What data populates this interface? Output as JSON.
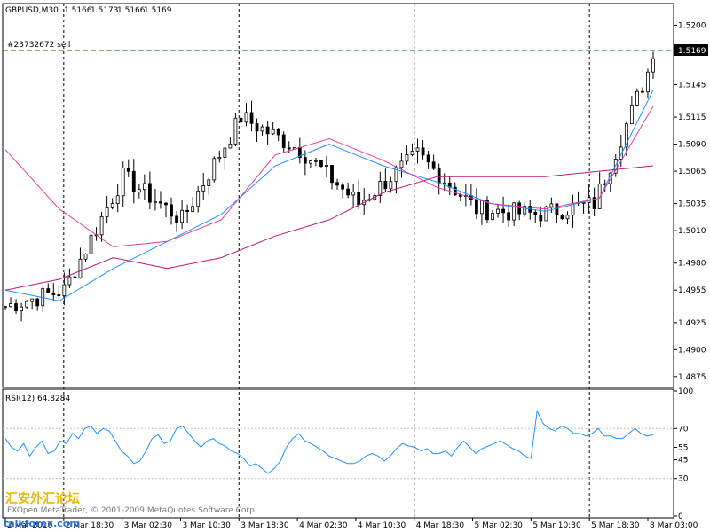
{
  "header": {
    "symbol": "GBPUSD,M30",
    "open": "1.5166",
    "high": "1.5173",
    "low": "1.5166",
    "close": "1.5169"
  },
  "order_label": "#23732672 sell",
  "current_price_label": "1.5169",
  "rsi_label": "RSI(12) 64.8284",
  "watermark": {
    "copyright": "FXOpen MetaTrader, © 2001-2009 MetaQuotes Software Corp.",
    "logo": "汇安外汇论坛",
    "site": "talkforex.com"
  },
  "colors": {
    "background": "#ffffff",
    "candles": "#000000",
    "ma_fast": "#1e90ff",
    "ma_mid": "#e040a0",
    "ma_slow": "#c0167a",
    "rsi_line": "#1e90ff",
    "order_line": "#006400"
  },
  "chart_data": [
    {
      "type": "candlestick",
      "title": "GBPUSD,M30",
      "ylim": [
        1.4865,
        1.522
      ],
      "y_ticks": [
        "1.5200",
        "1.5145",
        "1.5115",
        "1.5090",
        "1.5065",
        "1.5035",
        "1.5010",
        "1.4980",
        "1.4955",
        "1.4925",
        "1.4900",
        "1.4875"
      ],
      "x_ticks": [
        "2 Mar 2010",
        "2 Mar 18:30",
        "3 Mar 02:30",
        "3 Mar 10:30",
        "3 Mar 18:30",
        "4 Mar 02:30",
        "4 Mar 10:30",
        "4 Mar 18:30",
        "5 Mar 02:30",
        "5 Mar 10:30",
        "5 Mar 18:30",
        "8 Mar 03:00"
      ],
      "day_separators": [
        "2 Mar 18:30",
        "3 Mar 18:30",
        "4 Mar 18:30",
        "5 Mar 18:30"
      ],
      "order_line": {
        "label": "#23732672 sell",
        "value": 1.5169
      },
      "current_price": 1.5169,
      "key_closes": [
        {
          "time": "2 Mar 2010",
          "close": 1.494
        },
        {
          "time": "2 Mar 18:30",
          "close": 1.4955
        },
        {
          "time": "3 Mar 02:30",
          "close": 1.506
        },
        {
          "time": "3 Mar 10:30",
          "close": 1.502
        },
        {
          "time": "3 Mar 18:30",
          "close": 1.5115
        },
        {
          "time": "4 Mar 02:30",
          "close": 1.5085
        },
        {
          "time": "4 Mar 10:30",
          "close": 1.5035
        },
        {
          "time": "4 Mar 18:30",
          "close": 1.508
        },
        {
          "time": "5 Mar 02:30",
          "close": 1.503
        },
        {
          "time": "5 Mar 10:30",
          "close": 1.5025
        },
        {
          "time": "5 Mar 18:30",
          "close": 1.5035
        },
        {
          "time": "8 Mar 03:00",
          "close": 1.5169
        }
      ],
      "moving_averages": [
        {
          "values": [
            1.4955,
            1.4945,
            1.4975,
            1.5,
            1.5025,
            1.507,
            1.509,
            1.507,
            1.5055,
            1.5035,
            1.5028,
            1.504,
            1.514
          ]
        },
        {
          "values": [
            1.5085,
            1.503,
            1.4995,
            1.5,
            1.502,
            1.508,
            1.5095,
            1.5075,
            1.505,
            1.5035,
            1.503,
            1.504,
            1.5125
          ]
        },
        {
          "values": [
            1.4955,
            1.4965,
            1.4985,
            1.4975,
            1.4985,
            1.5005,
            1.502,
            1.5045,
            1.506,
            1.506,
            1.506,
            1.5065,
            1.507
          ]
        }
      ]
    },
    {
      "type": "line",
      "title": "RSI(12) 64.8284",
      "ylim": [
        0,
        100
      ],
      "y_ticks": [
        "100",
        "70",
        "55",
        "45",
        "30",
        "0"
      ],
      "levels": [
        70,
        30
      ],
      "series": [
        {
          "values": [
            62,
            55,
            52,
            58,
            48,
            55,
            60,
            50,
            52,
            60,
            58,
            66,
            62,
            70,
            72,
            66,
            70,
            68,
            60,
            52,
            48,
            42,
            44,
            52,
            62,
            65,
            58,
            60,
            70,
            72,
            66,
            60,
            55,
            60,
            62,
            58,
            56,
            52,
            50,
            46,
            40,
            42,
            38,
            34,
            38,
            44,
            55,
            62,
            66,
            60,
            58,
            55,
            52,
            48,
            46,
            44,
            42,
            42,
            44,
            48,
            50,
            48,
            44,
            48,
            54,
            58,
            56,
            55,
            52,
            54,
            50,
            50,
            52,
            48,
            55,
            60,
            55,
            50,
            54,
            56,
            58,
            60,
            57,
            54,
            52,
            48,
            46,
            84,
            74,
            70,
            68,
            72,
            70,
            66,
            66,
            64,
            66,
            70,
            64,
            64,
            62,
            62,
            66,
            70,
            66,
            64,
            65
          ]
        }
      ]
    }
  ]
}
